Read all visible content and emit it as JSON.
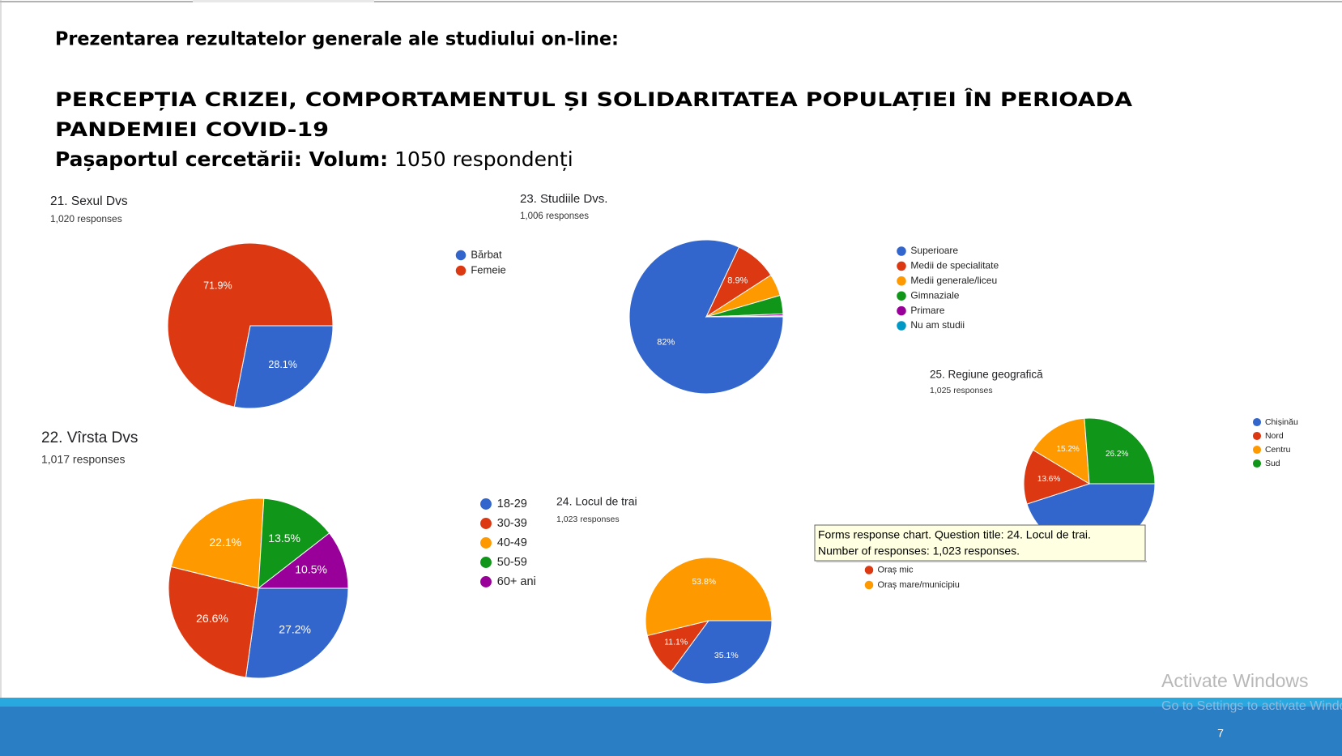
{
  "header": {
    "intro": "Prezentarea rezultatelor generale ale studiului on-line:",
    "title_line1": "PERCEPȚIA CRIZEI,  COMPORTAMENTUL ȘI SOLIDARITATEA POPULAȚIEI ÎN PERIOADA",
    "title_line2": "PANDEMIEI COVID-19",
    "passport_label": "Pașaportul cercetării: Volum:",
    "passport_value": "1050 respondenți"
  },
  "chart_data": [
    {
      "type": "pie",
      "title": "21. Sexul Dvs",
      "subtitle": "1,020 responses",
      "categories": [
        "Bărbat",
        "Femeie"
      ],
      "values": [
        28.1,
        71.9
      ],
      "value_labels": [
        "28.1%",
        "71.9%"
      ],
      "colors": [
        "#3366cc",
        "#dc3912"
      ]
    },
    {
      "type": "pie",
      "title": "22. Vîrsta Dvs",
      "subtitle": "1,017 responses",
      "categories": [
        "18-29",
        "30-39",
        "40-49",
        "50-59",
        "60+ ani"
      ],
      "values": [
        27.2,
        26.6,
        22.1,
        13.5,
        10.5
      ],
      "value_labels": [
        "27.2%",
        "26.6%",
        "22.1%",
        "13.5%",
        "10.5%"
      ],
      "colors": [
        "#3366cc",
        "#dc3912",
        "#ff9900",
        "#109618",
        "#990099"
      ]
    },
    {
      "type": "pie",
      "title": "23. Studiile Dvs.",
      "subtitle": "1,006 responses",
      "categories": [
        "Superioare",
        "Medii de specialitate",
        "Medii generale/liceu",
        "Gimnaziale",
        "Primare",
        "Nu am studii"
      ],
      "values": [
        82,
        8.9,
        4.6,
        3.9,
        0.4,
        0.2
      ],
      "value_labels": [
        "82%",
        "8.9%",
        null,
        null,
        null,
        null
      ],
      "colors": [
        "#3366cc",
        "#dc3912",
        "#ff9900",
        "#109618",
        "#990099",
        "#0099c6"
      ]
    },
    {
      "type": "pie",
      "title": "24. Locul de trai",
      "subtitle": "1,023 responses",
      "categories": [
        null,
        "Oraș mic",
        "Oraș mare/municipiu"
      ],
      "values": [
        35.1,
        11.1,
        53.8
      ],
      "value_labels": [
        "35.1%",
        "11.1%",
        "53.8%"
      ],
      "colors": [
        "#3366cc",
        "#dc3912",
        "#ff9900"
      ]
    },
    {
      "type": "pie",
      "title": "25. Regiune geografică",
      "subtitle": "1,025 responses",
      "categories": [
        "Chișinău",
        "Nord",
        "Centru",
        "Sud"
      ],
      "values": [
        45,
        13.6,
        15.2,
        26.2
      ],
      "value_labels": [
        null,
        "13.6%",
        "15.2%",
        "26.2%"
      ],
      "colors": [
        "#3366cc",
        "#dc3912",
        "#ff9900",
        "#109618"
      ]
    }
  ],
  "tooltip": {
    "lines": [
      "Forms response chart. Question title: 24. Locul de trai.",
      "Number of responses: 1,023 responses."
    ]
  },
  "watermark": {
    "title": "Activate Windows",
    "subtitle": "Go to Settings to activate Windows."
  },
  "footer": {
    "page": "7"
  }
}
